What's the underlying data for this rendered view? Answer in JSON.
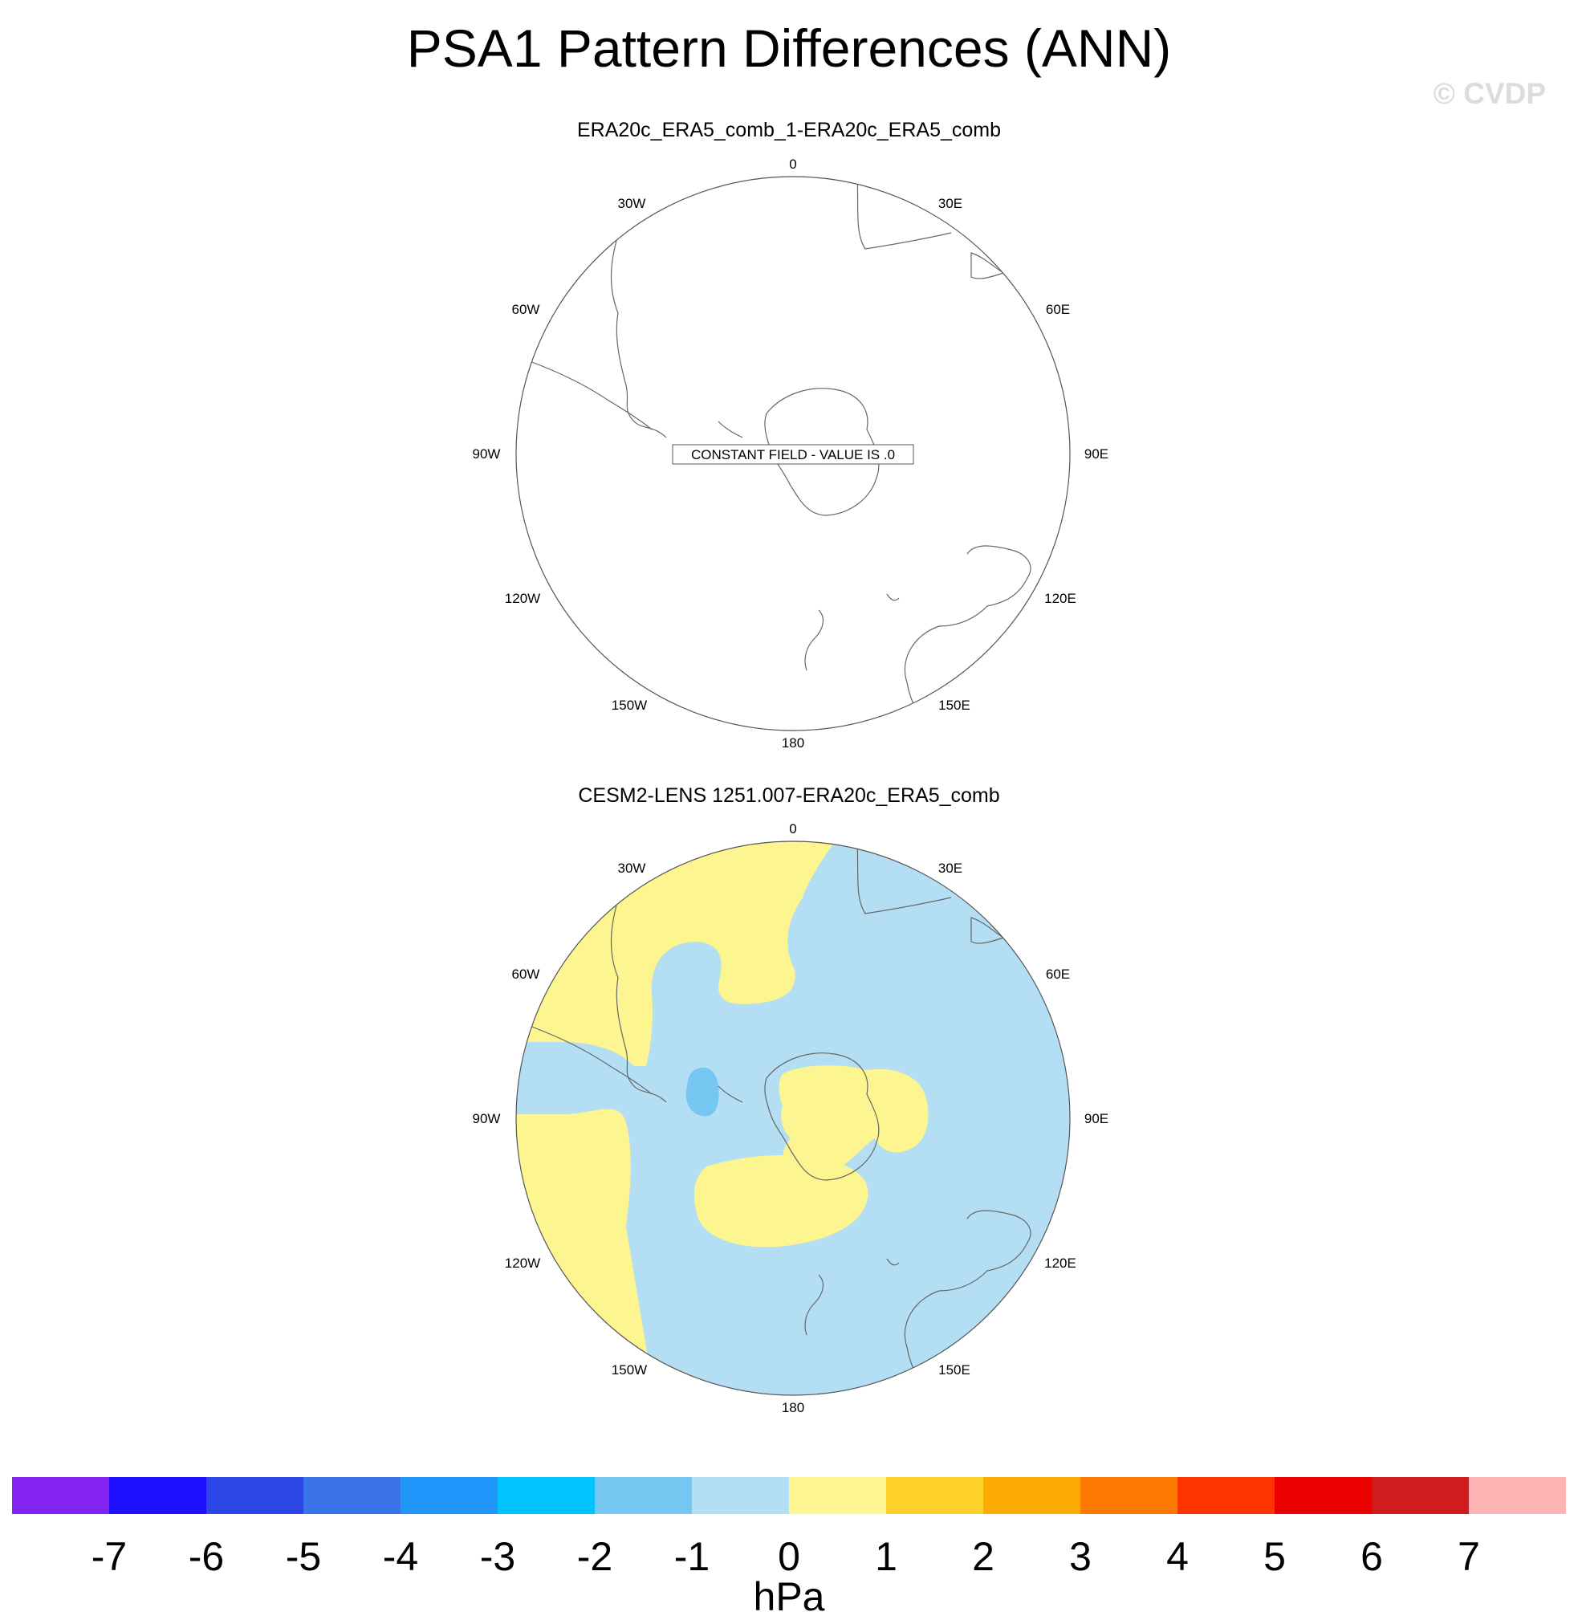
{
  "title": "PSA1 Pattern Differences (ANN)",
  "watermark": "© CVDP",
  "panels": [
    {
      "title": "ERA20c_ERA5_comb_1-ERA20c_ERA5_comb",
      "note": "CONSTANT FIELD - VALUE IS .0"
    },
    {
      "title": "CESM2-LENS 1251.007-ERA20c_ERA5_comb"
    }
  ],
  "lon_labels": {
    "top": "0",
    "tr30": "30E",
    "tr60": "60E",
    "right": "90E",
    "br120": "120E",
    "br150": "150E",
    "bottom": "180",
    "bl150": "150W",
    "bl120": "120W",
    "left": "90W",
    "tl60": "60W",
    "tl30": "30W"
  },
  "colors": {
    "fill_0_1": "#fdf58f",
    "fill_m1_0": "#b4def3",
    "fill_m2_m1": "#75c6f0",
    "coast": "#666666"
  },
  "colorbar": {
    "units": "hPa",
    "tick_labels": [
      "-7",
      "-6",
      "-5",
      "-4",
      "-3",
      "-2",
      "-1",
      "0",
      "1",
      "2",
      "3",
      "4",
      "5",
      "6",
      "7"
    ],
    "colors": [
      "#8323f0",
      "#1e0fff",
      "#2c46e6",
      "#3a73e8",
      "#2196fa",
      "#00c3ff",
      "#75c6f0",
      "#b4def3",
      "#fdf58f",
      "#fed22b",
      "#fdab02",
      "#fe7902",
      "#ff3300",
      "#eb0000",
      "#cf1d1d",
      "#feb4b4"
    ]
  }
}
